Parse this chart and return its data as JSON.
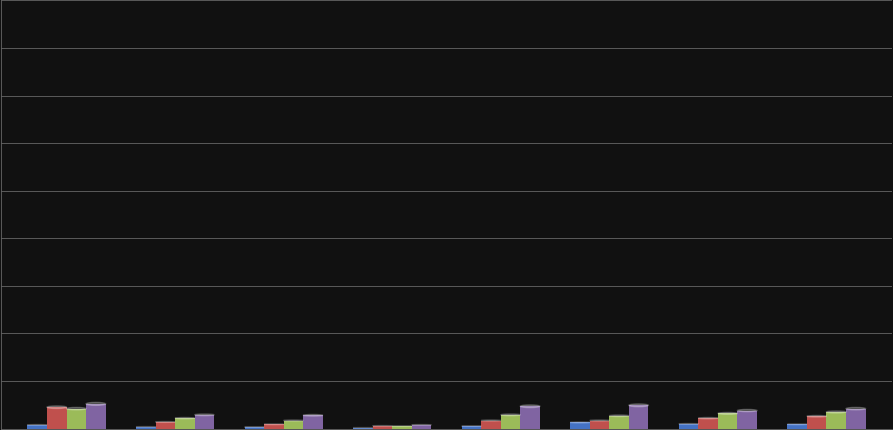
{
  "plot_bg_color": "#111111",
  "grid_color": "#666666",
  "bar_colors": [
    "#4472c4",
    "#c0504d",
    "#9bbb59",
    "#8064a2"
  ],
  "series": [
    [
      0.08,
      0.04,
      0.03,
      0.02,
      0.05,
      0.13,
      0.1,
      0.09
    ],
    [
      0.45,
      0.14,
      0.09,
      0.06,
      0.17,
      0.17,
      0.22,
      0.26
    ],
    [
      0.42,
      0.22,
      0.17,
      0.05,
      0.29,
      0.27,
      0.32,
      0.35
    ],
    [
      0.52,
      0.29,
      0.28,
      0.08,
      0.47,
      0.49,
      0.38,
      0.42
    ]
  ],
  "ylim": [
    0,
    9
  ],
  "ytick_count": 10,
  "bar_width": 0.18,
  "figsize": [
    8.93,
    4.31
  ],
  "dpi": 100,
  "n_groups": 8
}
